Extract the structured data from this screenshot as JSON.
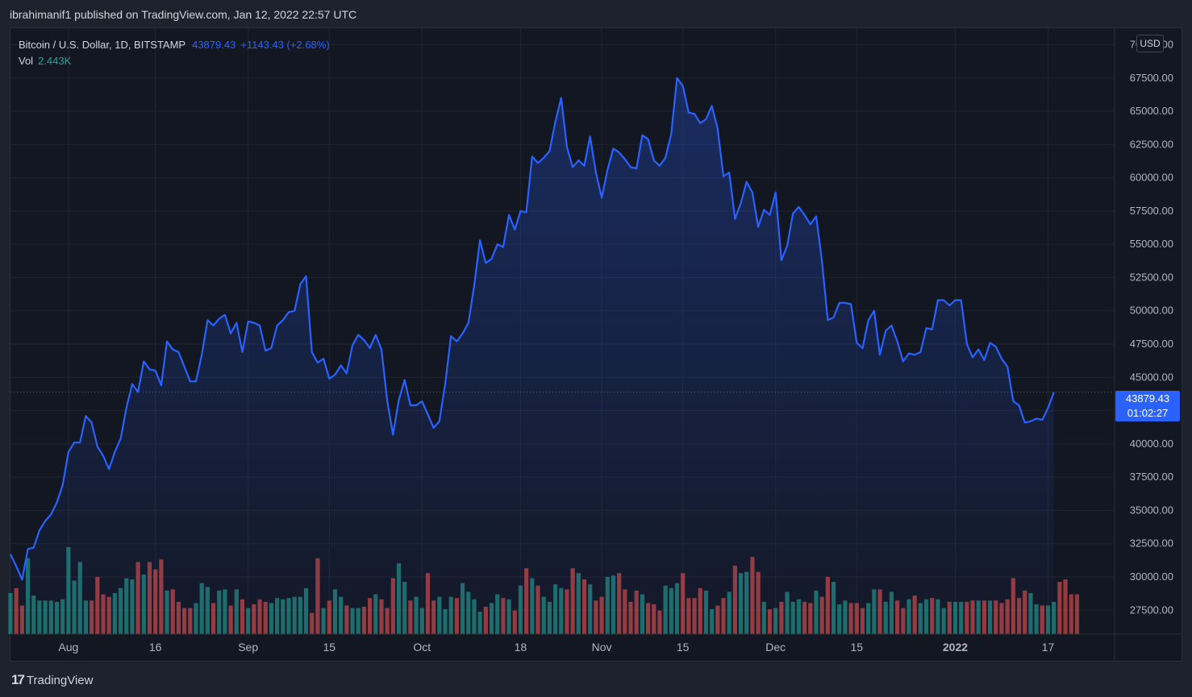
{
  "header": {
    "published_text": "ibrahimanif1 published on TradingView.com, Jan 12, 2022 22:57 UTC"
  },
  "legend": {
    "symbol": "Bitcoin / U.S. Dollar, 1D, BITSTAMP",
    "price": "43879.43",
    "change": "+1143.43 (+2.68%)",
    "vol_label": "Vol",
    "vol_value": "2.443K"
  },
  "currency_label": "USD",
  "price_tag": {
    "price": "43879.43",
    "countdown": "01:02:27"
  },
  "footer": {
    "brand": "TradingView",
    "logo_glyph": "17"
  },
  "colors": {
    "line": "#2962ff",
    "up_volume": "#26a69a",
    "down_volume": "#ef5350",
    "background": "#131722",
    "grid": "#1f2431"
  },
  "chart_data": {
    "type": "line",
    "title": "Bitcoin / U.S. Dollar, 1D, BITSTAMP",
    "y_axis_ticks": [
      "27500.00",
      "30000.00",
      "32500.00",
      "35000.00",
      "37500.00",
      "40000.00",
      "42500.00",
      "45000.00",
      "47500.00",
      "50000.00",
      "52500.00",
      "55000.00",
      "57500.00",
      "60000.00",
      "62500.00",
      "65000.00",
      "67500.00",
      "70000.00"
    ],
    "x_axis_ticks": [
      {
        "label": "Aug",
        "day_index": 10,
        "bold": false
      },
      {
        "label": "16",
        "day_index": 25,
        "bold": false
      },
      {
        "label": "Sep",
        "day_index": 41,
        "bold": false
      },
      {
        "label": "15",
        "day_index": 55,
        "bold": false
      },
      {
        "label": "Oct",
        "day_index": 71,
        "bold": false
      },
      {
        "label": "18",
        "day_index": 88,
        "bold": false
      },
      {
        "label": "Nov",
        "day_index": 102,
        "bold": false
      },
      {
        "label": "15",
        "day_index": 116,
        "bold": false
      },
      {
        "label": "Dec",
        "day_index": 132,
        "bold": false
      },
      {
        "label": "15",
        "day_index": 146,
        "bold": false
      },
      {
        "label": "2022",
        "day_index": 163,
        "bold": true
      },
      {
        "label": "17",
        "day_index": 179,
        "bold": false
      }
    ],
    "ylim": [
      25700,
      71300
    ],
    "current_price": 43879.43,
    "series": [
      {
        "values": [
          31700,
          30800,
          29800,
          32100,
          32200,
          33500,
          34200,
          34700,
          35600,
          36900,
          39400,
          40100,
          40100,
          42100,
          41600,
          39800,
          39100,
          38100,
          39400,
          40400,
          42700,
          44500,
          43900,
          46200,
          45600,
          45500,
          44400,
          47700,
          47100,
          46900,
          45800,
          44700,
          44700,
          46700,
          49300,
          48900,
          49400,
          49700,
          48300,
          49100,
          46900,
          49200,
          49100,
          48900,
          47000,
          47200,
          48900,
          49300,
          49900,
          50000,
          52000,
          52600,
          46900,
          46100,
          46400,
          44900,
          45200,
          45900,
          45300,
          47400,
          48200,
          47800,
          47200,
          48200,
          47100,
          43200,
          40700,
          43300,
          44800,
          42900,
          42900,
          43200,
          42200,
          41200,
          41700,
          44500,
          48100,
          47700,
          48300,
          49100,
          51900,
          55300,
          53600,
          53900,
          55000,
          54800,
          57200,
          56100,
          57500,
          57400,
          61600,
          61100,
          61500,
          62000,
          64200,
          66000,
          62300,
          60800,
          61300,
          60900,
          63100,
          60400,
          58500,
          60600,
          62200,
          61900,
          61400,
          60800,
          60700,
          63200,
          62900,
          61300,
          60900,
          61500,
          63300,
          67500,
          66900,
          64900,
          64800,
          64100,
          64400,
          65400,
          63700,
          60100,
          60400,
          56900,
          58100,
          59700,
          58900,
          56300,
          57600,
          57200,
          58900,
          53800,
          54900,
          57300,
          57800,
          57200,
          56500,
          57100,
          53700,
          49300,
          49500,
          50600,
          50600,
          50500,
          47600,
          47200,
          49300,
          50000,
          46700,
          48500,
          48900,
          47700,
          46200,
          46800,
          46700,
          46900,
          48700,
          48600,
          50800,
          50800,
          50400,
          50800,
          50800,
          47500,
          46500,
          47100,
          46300,
          47600,
          47300,
          46400,
          45800,
          43200,
          42900,
          41600,
          41700,
          41900,
          41800,
          42700,
          43879.43
        ]
      },
      {
        "name": "Vol",
        "values": [
          29000,
          29400,
          28000,
          31800,
          28800,
          28400,
          28400,
          28400,
          28300,
          28500,
          32700,
          30000,
          31500,
          28400,
          28400,
          30300,
          28900,
          28700,
          29000,
          29400,
          30200,
          30100,
          31500,
          30500,
          31500,
          30900,
          31700,
          29200,
          29300,
          28300,
          27800,
          27800,
          28200,
          29800,
          29500,
          28200,
          29200,
          29300,
          28000,
          29300,
          28500,
          27800,
          28100,
          28500,
          28300,
          28200,
          28600,
          28500,
          28600,
          28700,
          28700,
          29400,
          27400,
          31800,
          27800,
          28400,
          29300,
          28700,
          28000,
          27800,
          27800,
          27900,
          28600,
          28900,
          28500,
          27800,
          30200,
          31400,
          29900,
          28400,
          28700,
          27800,
          30600,
          28400,
          28700,
          27700,
          28700,
          28600,
          29800,
          29100,
          28500,
          27500,
          27900,
          28200,
          28900,
          28600,
          28500,
          27600,
          29600,
          31000,
          30200,
          29600,
          28700,
          28300,
          29700,
          29400,
          29300,
          31000,
          30600,
          30100,
          29700,
          28400,
          28700,
          30300,
          30400,
          30600,
          29300,
          28300,
          29200,
          28900,
          28200,
          28100,
          27600,
          29600,
          29400,
          29800,
          30600,
          28600,
          28600,
          29400,
          29200,
          27700,
          28000,
          28600,
          29100,
          31200,
          30600,
          30700,
          31900,
          30700,
          28300,
          27700,
          27800,
          28300,
          29100,
          28300,
          28500,
          28300,
          28200,
          29200,
          28700,
          30300,
          29900,
          28100,
          28400,
          28200,
          28200,
          27800,
          28200,
          29300,
          29300,
          28300,
          29100,
          28400,
          27800,
          28500,
          28800,
          28200,
          28500,
          28600,
          28500,
          27800,
          28300,
          28300,
          28300,
          28300,
          28400,
          28400,
          28400,
          28400,
          28400,
          28200,
          28500,
          30200,
          28600,
          29200,
          29000,
          28100,
          28000,
          28000,
          28300,
          29900,
          30100,
          28900,
          28900
        ]
      }
    ],
    "volume_display": {
      "up_color": "#26a69a",
      "down_color": "#ef5350",
      "pane_ylim": [
        25700,
        38000
      ]
    }
  }
}
